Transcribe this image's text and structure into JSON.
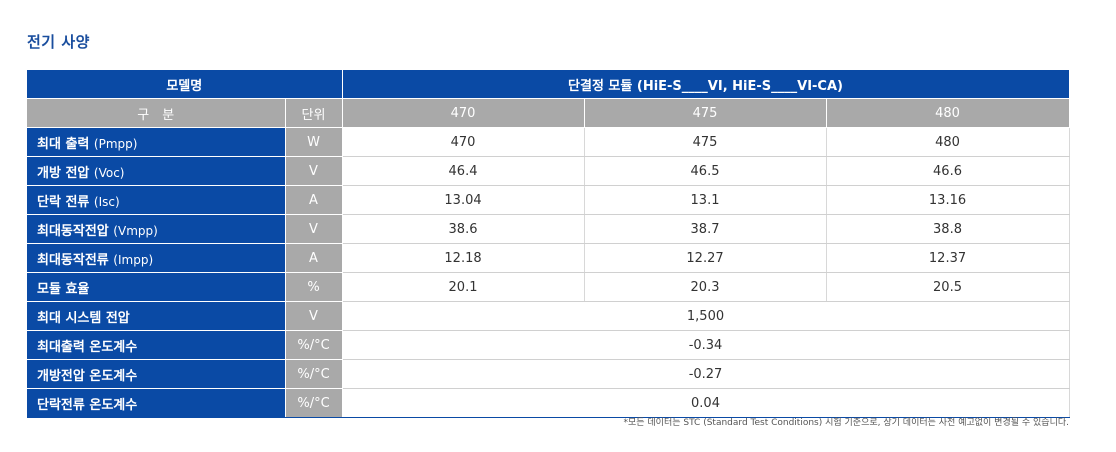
{
  "title": "전기 사양",
  "header": {
    "model_label": "모델명",
    "model_value": "단결정 모듈 (HiE-S____VI, HiE-S____VI-CA)",
    "category_label": "구　분",
    "unit_label": "단위",
    "columns": [
      "470",
      "475",
      "480"
    ]
  },
  "rows": [
    {
      "label": "최대 출력",
      "sub": "(Pmpp)",
      "unit": "W",
      "values": [
        "470",
        "475",
        "480"
      ]
    },
    {
      "label": "개방 전압",
      "sub": "(Voc)",
      "unit": "V",
      "values": [
        "46.4",
        "46.5",
        "46.6"
      ]
    },
    {
      "label": "단락 전류",
      "sub": "(Isc)",
      "unit": "A",
      "values": [
        "13.04",
        "13.1",
        "13.16"
      ]
    },
    {
      "label": "최대동작전압",
      "sub": "(Vmpp)",
      "unit": "V",
      "values": [
        "38.6",
        "38.7",
        "38.8"
      ]
    },
    {
      "label": "최대동작전류",
      "sub": "(Impp)",
      "unit": "A",
      "values": [
        "12.18",
        "12.27",
        "12.37"
      ]
    },
    {
      "label": "모듈 효율",
      "sub": "",
      "unit": "%",
      "values": [
        "20.1",
        "20.3",
        "20.5"
      ]
    }
  ],
  "merged_rows": [
    {
      "label": "최대 시스템 전압",
      "unit": "V",
      "value": "1,500"
    },
    {
      "label": "최대출력 온도계수",
      "unit": "%/°C",
      "value": "-0.34"
    },
    {
      "label": "개방전압 온도계수",
      "unit": "%/°C",
      "value": "-0.27"
    },
    {
      "label": "단락전류 온도계수",
      "unit": "%/°C",
      "value": "0.04"
    }
  ],
  "footnote": "*모든 데이터는 STC (Standard Test Conditions) 시험 기준으로, 상기 데이터는 사전 예고없이 변경될 수 있습니다."
}
